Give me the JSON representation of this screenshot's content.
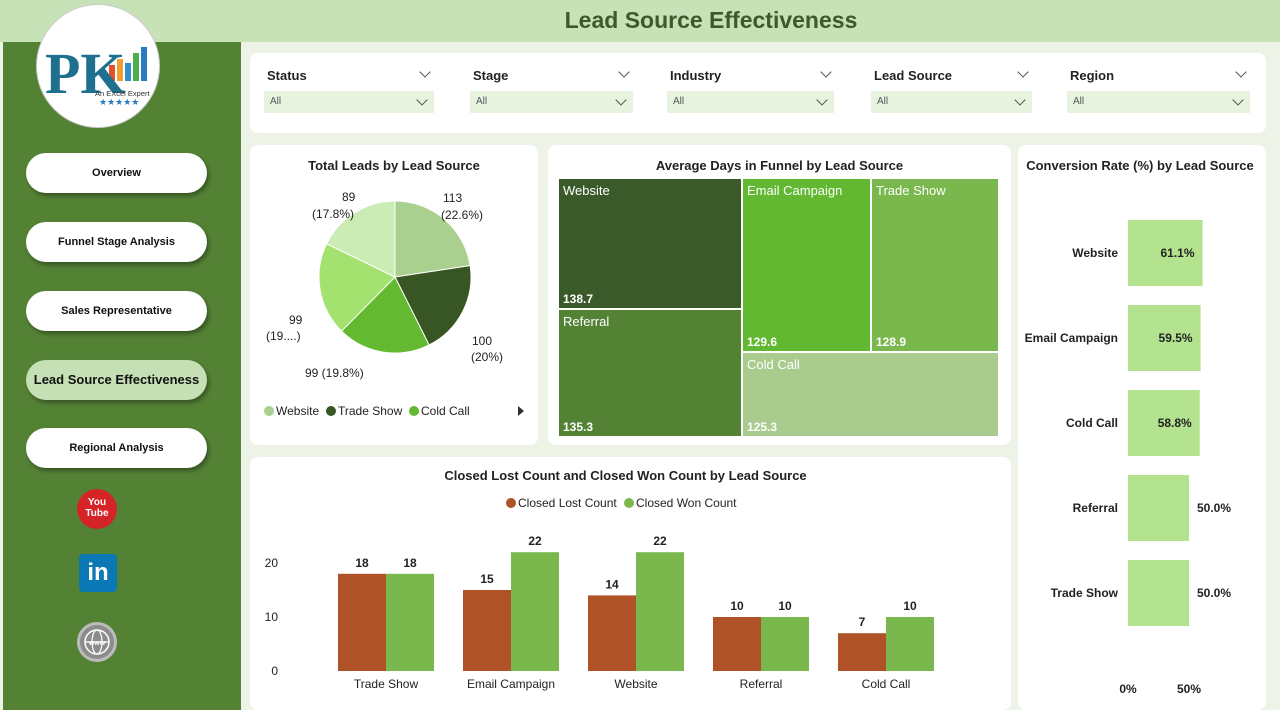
{
  "title": "Lead Source Effectiveness",
  "logo": {
    "brand_text": "An EXcel Expert",
    "stars": "★★★★★",
    "initials": "PK"
  },
  "nav": [
    {
      "label": "Overview",
      "active": false
    },
    {
      "label": "Funnel Stage Analysis",
      "active": false
    },
    {
      "label": "Sales Representative",
      "active": false
    },
    {
      "label": "Lead Source Effectiveness",
      "active": true
    },
    {
      "label": "Regional Analysis",
      "active": false
    }
  ],
  "social": {
    "youtube_text": "You Tube",
    "linkedin_text": "in",
    "web_text": "www"
  },
  "filters": [
    {
      "label": "Status",
      "value": "All"
    },
    {
      "label": "Stage",
      "value": "All"
    },
    {
      "label": "Industry",
      "value": "All"
    },
    {
      "label": "Lead Source",
      "value": "All"
    },
    {
      "label": "Region",
      "value": "All"
    }
  ],
  "colors": {
    "website": "#a9d08e",
    "trade_show": "#375623",
    "cold_call": "#63b92f",
    "email_campaign": "#a3e26f",
    "referral": "#cbedb5",
    "closed_lost": "#b05227",
    "closed_won": "#7ab84e",
    "conv_bar": "#b3e38e"
  },
  "pie": {
    "title": "Total Leads by Lead Source",
    "slices": [
      {
        "name": "Website",
        "value": 113,
        "label1": "113",
        "label2": "(22.6%)",
        "color": "#a9d08e"
      },
      {
        "name": "Trade Show",
        "value": 100,
        "label1": "100",
        "label2": "(20%)",
        "color": "#375623"
      },
      {
        "name": "Cold Call",
        "value": 99,
        "label1": "99 (19.8%)",
        "label2": "",
        "color": "#63b92f"
      },
      {
        "name": "Email Campaign",
        "value": 99,
        "label1": "99",
        "label2": "(19....)",
        "color": "#a3e26f"
      },
      {
        "name": "Referral",
        "value": 89,
        "label1": "89",
        "label2": "(17.8%)",
        "color": "#cbedb5"
      }
    ],
    "legend": [
      "Website",
      "Trade Show",
      "Cold Call"
    ]
  },
  "treemap": {
    "title": "Average Days in Funnel by Lead Source",
    "cells": [
      {
        "name": "Website",
        "value": "138.7"
      },
      {
        "name": "Referral",
        "value": "135.3"
      },
      {
        "name": "Email Campaign",
        "value": "129.6"
      },
      {
        "name": "Trade Show",
        "value": "128.9"
      },
      {
        "name": "Cold Call",
        "value": "125.3"
      }
    ]
  },
  "chart_data": [
    {
      "type": "pie",
      "title": "Total Leads by Lead Source",
      "categories": [
        "Website",
        "Trade Show",
        "Cold Call",
        "Email Campaign",
        "Referral"
      ],
      "values": [
        113,
        100,
        99,
        99,
        89
      ]
    },
    {
      "type": "heatmap",
      "title": "Average Days in Funnel by Lead Source",
      "categories": [
        "Website",
        "Referral",
        "Email Campaign",
        "Trade Show",
        "Cold Call"
      ],
      "values": [
        138.7,
        135.3,
        129.6,
        128.9,
        125.3
      ]
    },
    {
      "type": "bar",
      "title": "Closed Lost Count and Closed Won Count by Lead Source",
      "categories": [
        "Trade Show",
        "Email Campaign",
        "Website",
        "Referral",
        "Cold Call"
      ],
      "series": [
        {
          "name": "Closed Lost Count",
          "values": [
            18,
            15,
            14,
            10,
            7
          ]
        },
        {
          "name": "Closed Won Count",
          "values": [
            18,
            22,
            22,
            10,
            10
          ]
        }
      ],
      "yticks": [
        "0",
        "10",
        "20"
      ],
      "ylim": [
        0,
        25
      ]
    },
    {
      "type": "bar",
      "orientation": "horizontal",
      "title": "Conversion Rate (%) by Lead Source",
      "categories": [
        "Website",
        "Email Campaign",
        "Cold Call",
        "Referral",
        "Trade Show"
      ],
      "values": [
        61.1,
        59.5,
        58.8,
        50.0,
        50.0
      ],
      "labels": [
        "61.1%",
        "59.5%",
        "58.8%",
        "50.0%",
        "50.0%"
      ],
      "xticks": [
        "0%",
        "50%"
      ],
      "xlim": [
        0,
        60
      ]
    }
  ],
  "bars": {
    "title": "Closed Lost Count and Closed Won Count by Lead Source",
    "legend_lost": "Closed Lost Count",
    "legend_won": "Closed Won Count"
  },
  "conversion": {
    "title": "Conversion Rate (%) by Lead Source"
  }
}
